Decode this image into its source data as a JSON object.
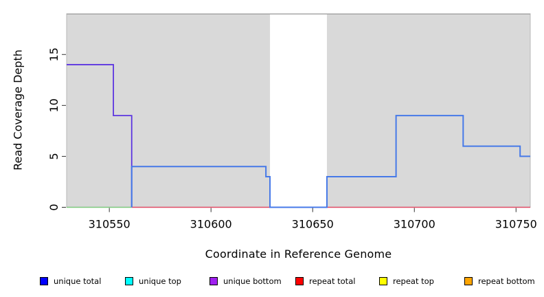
{
  "chart_data": {
    "type": "line",
    "subtype": "step-coverage",
    "title": "",
    "xlabel": "Coordinate in Reference Genome",
    "ylabel": "Read Coverage Depth",
    "xlim": [
      310529,
      310757
    ],
    "ylim": [
      0,
      19
    ],
    "x_ticks": [
      310550,
      310600,
      310650,
      310700,
      310750
    ],
    "y_ticks": [
      0,
      5,
      10,
      15
    ],
    "grid": false,
    "legend_position": "bottom",
    "plot_bg": "#d9d9d9",
    "plot_border_color": "#b8b8b8",
    "top_border_color": "#9e9e9e",
    "tick_color": "#303030",
    "gap_region": {
      "x0": 310629,
      "x1": 310657,
      "fill": "#ffffff"
    },
    "series": [
      {
        "name": "top-strand-zero",
        "color": "#7cc87c",
        "width": 1.4,
        "path": [
          [
            310529,
            0
          ],
          [
            310561,
            0
          ]
        ]
      },
      {
        "name": "repeat-total",
        "color": "#e04a63",
        "width": 1.4,
        "path": [
          [
            310561,
            0
          ],
          [
            310757,
            0
          ]
        ]
      },
      {
        "name": "unique-bottom",
        "color": "#5c35e0",
        "width": 1.8,
        "path": [
          [
            310529,
            14
          ],
          [
            310552,
            14
          ],
          [
            310552,
            9
          ],
          [
            310561,
            9
          ],
          [
            310561,
            0
          ]
        ]
      },
      {
        "name": "unique-total",
        "color": "#4679e8",
        "width": 2,
        "path": [
          [
            310561,
            0
          ],
          [
            310561,
            4
          ],
          [
            310627,
            4
          ],
          [
            310627,
            3
          ],
          [
            310629,
            3
          ],
          [
            310629,
            0
          ],
          [
            310657,
            0
          ],
          [
            310657,
            3
          ],
          [
            310691,
            3
          ],
          [
            310691,
            9
          ],
          [
            310724,
            9
          ],
          [
            310724,
            6
          ],
          [
            310752,
            6
          ],
          [
            310752,
            5
          ],
          [
            310757,
            5
          ]
        ]
      }
    ]
  },
  "legend": {
    "items": [
      {
        "label": "unique total",
        "color": "#0000ff"
      },
      {
        "label": "unique top",
        "color": "#00ffff"
      },
      {
        "label": "unique bottom",
        "color": "#a020f0"
      },
      {
        "label": "repeat total",
        "color": "#ff0000"
      },
      {
        "label": "repeat top",
        "color": "#ffff00"
      },
      {
        "label": "repeat bottom",
        "color": "#ffa500"
      }
    ]
  }
}
